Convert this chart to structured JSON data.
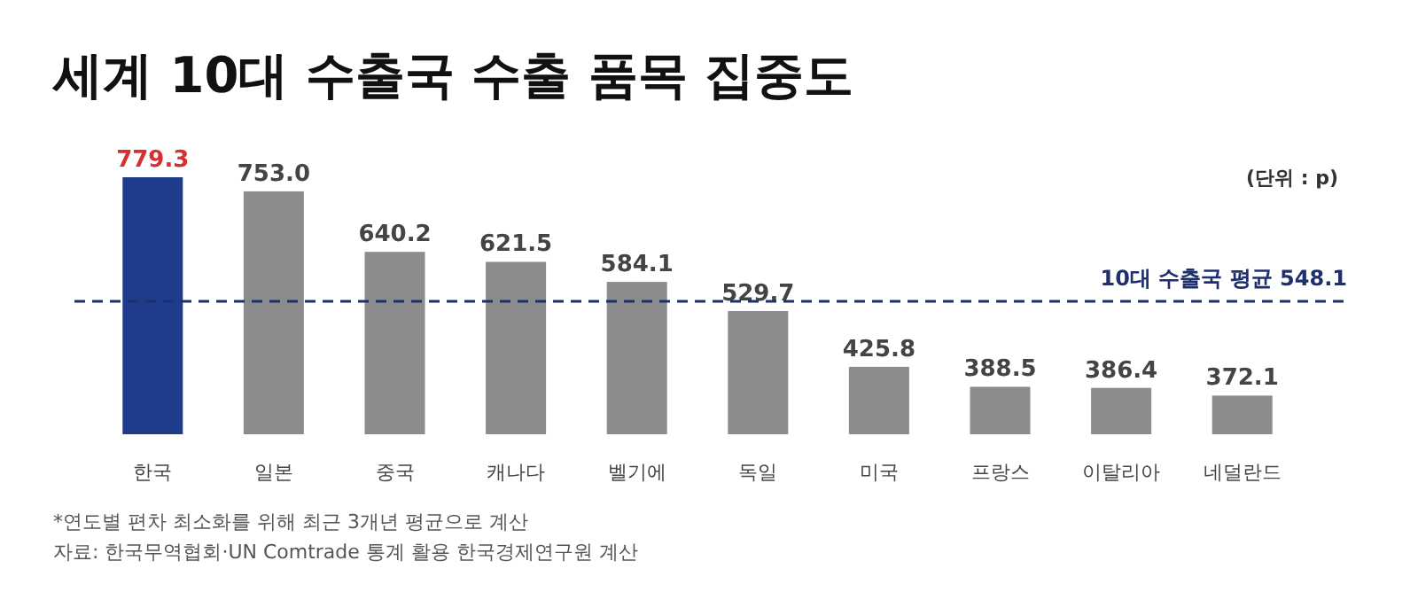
{
  "chart_data": {
    "type": "bar",
    "title": "세계 10대 수출국 수출 품목 집중도",
    "categories": [
      "한국",
      "일본",
      "중국",
      "캐나다",
      "벨기에",
      "독일",
      "미국",
      "프랑스",
      "이탈리아",
      "네덜란드"
    ],
    "values": [
      779.3,
      753.0,
      640.2,
      621.5,
      584.1,
      529.7,
      425.8,
      388.5,
      386.4,
      372.1
    ],
    "value_labels": [
      "779.3",
      "753.0",
      "640.2",
      "621.5",
      "584.1",
      "529.7",
      "425.8",
      "388.5",
      "386.4",
      "372.1"
    ],
    "colors": [
      "#1f3c8c",
      "#8c8c8c",
      "#8c8c8c",
      "#8c8c8c",
      "#8c8c8c",
      "#8c8c8c",
      "#8c8c8c",
      "#8c8c8c",
      "#8c8c8c",
      "#8c8c8c"
    ],
    "ylim": [
      300,
      779.3
    ],
    "ref_lines": [
      {
        "axis": "y",
        "value": 548.1,
        "label": "10대 수출국 평균 548.1",
        "color": "#1f2f6e",
        "line_style": "dashed"
      }
    ],
    "annotations": [
      "(단위 : p)",
      "*연도별 편차 최소화를 위해 최근 3개년 평균으로 계산",
      "자료: 한국무역협회·UN Comtrade 통계 활용 한국경제연구원 계산"
    ],
    "data_labels": false
  }
}
